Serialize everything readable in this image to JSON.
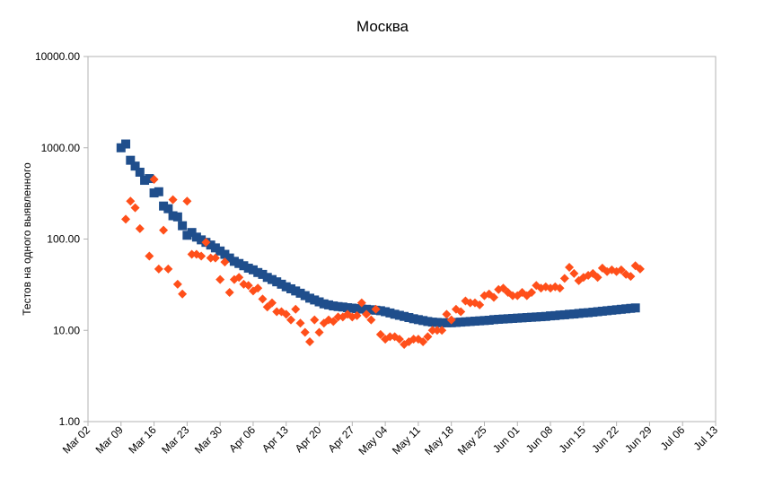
{
  "chart_data": {
    "type": "scatter",
    "title": "Москва",
    "xlabel": "",
    "ylabel": "Тестов на одного выявленного",
    "yscale": "log",
    "ylim": [
      1,
      10000
    ],
    "xlim": [
      "2020-03-02",
      "2020-07-13"
    ],
    "grid": true,
    "legend": "none",
    "y_ticks": [
      "1.00",
      "10.00",
      "100.00",
      "1000.00",
      "10000.00"
    ],
    "x_ticks": [
      {
        "label": "Mar 02",
        "date": "2020-03-02"
      },
      {
        "label": "Mar 09",
        "date": "2020-03-09"
      },
      {
        "label": "Mar 16",
        "date": "2020-03-16"
      },
      {
        "label": "Mar 23",
        "date": "2020-03-23"
      },
      {
        "label": "Mar 30",
        "date": "2020-03-30"
      },
      {
        "label": "Apr 06",
        "date": "2020-04-06"
      },
      {
        "label": "Apr 13",
        "date": "2020-04-13"
      },
      {
        "label": "Apr 20",
        "date": "2020-04-20"
      },
      {
        "label": "Apr 27",
        "date": "2020-04-27"
      },
      {
        "label": "May 04",
        "date": "2020-05-04"
      },
      {
        "label": "May 11",
        "date": "2020-05-11"
      },
      {
        "label": "May 18",
        "date": "2020-05-18"
      },
      {
        "label": "May 25",
        "date": "2020-05-25"
      },
      {
        "label": "Jun 01",
        "date": "2020-06-01"
      },
      {
        "label": "Jun 08",
        "date": "2020-06-08"
      },
      {
        "label": "Jun 15",
        "date": "2020-06-15"
      },
      {
        "label": "Jun 22",
        "date": "2020-06-22"
      },
      {
        "label": "Jun 29",
        "date": "2020-06-29"
      },
      {
        "label": "Jul 06",
        "date": "2020-07-06"
      },
      {
        "label": "Jul 13",
        "date": "2020-07-13"
      }
    ],
    "series": [
      {
        "marker": "square",
        "color": "#1f4e8c",
        "points": [
          {
            "x": "2020-03-09",
            "y": 1000
          },
          {
            "x": "2020-03-10",
            "y": 1100
          },
          {
            "x": "2020-03-11",
            "y": 730
          },
          {
            "x": "2020-03-12",
            "y": 630
          },
          {
            "x": "2020-03-13",
            "y": 540
          },
          {
            "x": "2020-03-14",
            "y": 440
          },
          {
            "x": "2020-03-15",
            "y": 460
          },
          {
            "x": "2020-03-16",
            "y": 320
          },
          {
            "x": "2020-03-17",
            "y": 330
          },
          {
            "x": "2020-03-18",
            "y": 230
          },
          {
            "x": "2020-03-19",
            "y": 215
          },
          {
            "x": "2020-03-20",
            "y": 180
          },
          {
            "x": "2020-03-21",
            "y": 175
          },
          {
            "x": "2020-03-22",
            "y": 140
          },
          {
            "x": "2020-03-23",
            "y": 110
          },
          {
            "x": "2020-03-24",
            "y": 118
          },
          {
            "x": "2020-03-25",
            "y": 105
          },
          {
            "x": "2020-03-26",
            "y": 98
          },
          {
            "x": "2020-03-27",
            "y": 92
          },
          {
            "x": "2020-03-28",
            "y": 86
          },
          {
            "x": "2020-03-29",
            "y": 80
          },
          {
            "x": "2020-03-30",
            "y": 74
          },
          {
            "x": "2020-03-31",
            "y": 68
          },
          {
            "x": "2020-04-01",
            "y": 62
          },
          {
            "x": "2020-04-02",
            "y": 57
          },
          {
            "x": "2020-04-03",
            "y": 54
          },
          {
            "x": "2020-04-04",
            "y": 51
          },
          {
            "x": "2020-04-05",
            "y": 48
          },
          {
            "x": "2020-04-06",
            "y": 46
          },
          {
            "x": "2020-04-07",
            "y": 43
          },
          {
            "x": "2020-04-08",
            "y": 41
          },
          {
            "x": "2020-04-09",
            "y": 38
          },
          {
            "x": "2020-04-10",
            "y": 36
          },
          {
            "x": "2020-04-11",
            "y": 34
          },
          {
            "x": "2020-04-12",
            "y": 32
          },
          {
            "x": "2020-04-13",
            "y": 30
          },
          {
            "x": "2020-04-14",
            "y": 28.5
          },
          {
            "x": "2020-04-15",
            "y": 27
          },
          {
            "x": "2020-04-16",
            "y": 25.5
          },
          {
            "x": "2020-04-17",
            "y": 24
          },
          {
            "x": "2020-04-18",
            "y": 22.5
          },
          {
            "x": "2020-04-19",
            "y": 21.5
          },
          {
            "x": "2020-04-20",
            "y": 20.5
          },
          {
            "x": "2020-04-21",
            "y": 19.5
          },
          {
            "x": "2020-04-22",
            "y": 19
          },
          {
            "x": "2020-04-23",
            "y": 18.5
          },
          {
            "x": "2020-04-24",
            "y": 18.2
          },
          {
            "x": "2020-04-25",
            "y": 18
          },
          {
            "x": "2020-04-26",
            "y": 17.7
          },
          {
            "x": "2020-04-27",
            "y": 17.5
          },
          {
            "x": "2020-04-28",
            "y": 17.3
          },
          {
            "x": "2020-04-29",
            "y": 17.1
          },
          {
            "x": "2020-04-30",
            "y": 17
          },
          {
            "x": "2020-05-01",
            "y": 16.8
          },
          {
            "x": "2020-05-02",
            "y": 16.6
          },
          {
            "x": "2020-05-03",
            "y": 16.4
          },
          {
            "x": "2020-05-04",
            "y": 16
          },
          {
            "x": "2020-05-05",
            "y": 15.5
          },
          {
            "x": "2020-05-06",
            "y": 15
          },
          {
            "x": "2020-05-07",
            "y": 14.6
          },
          {
            "x": "2020-05-08",
            "y": 14.2
          },
          {
            "x": "2020-05-09",
            "y": 13.8
          },
          {
            "x": "2020-05-10",
            "y": 13.4
          },
          {
            "x": "2020-05-11",
            "y": 13.1
          },
          {
            "x": "2020-05-12",
            "y": 12.8
          },
          {
            "x": "2020-05-13",
            "y": 12.5
          },
          {
            "x": "2020-05-14",
            "y": 12.3
          },
          {
            "x": "2020-05-15",
            "y": 12.2
          },
          {
            "x": "2020-05-16",
            "y": 12.1
          },
          {
            "x": "2020-05-17",
            "y": 12.1
          },
          {
            "x": "2020-05-18",
            "y": 12.1
          },
          {
            "x": "2020-05-19",
            "y": 12.2
          },
          {
            "x": "2020-05-20",
            "y": 12.3
          },
          {
            "x": "2020-05-21",
            "y": 12.4
          },
          {
            "x": "2020-05-22",
            "y": 12.5
          },
          {
            "x": "2020-05-23",
            "y": 12.6
          },
          {
            "x": "2020-05-24",
            "y": 12.7
          },
          {
            "x": "2020-05-25",
            "y": 12.8
          },
          {
            "x": "2020-05-26",
            "y": 12.9
          },
          {
            "x": "2020-05-27",
            "y": 13.1
          },
          {
            "x": "2020-05-28",
            "y": 13.2
          },
          {
            "x": "2020-05-29",
            "y": 13.3
          },
          {
            "x": "2020-05-30",
            "y": 13.4
          },
          {
            "x": "2020-05-31",
            "y": 13.5
          },
          {
            "x": "2020-06-01",
            "y": 13.6
          },
          {
            "x": "2020-06-02",
            "y": 13.7
          },
          {
            "x": "2020-06-03",
            "y": 13.8
          },
          {
            "x": "2020-06-04",
            "y": 13.9
          },
          {
            "x": "2020-06-05",
            "y": 14
          },
          {
            "x": "2020-06-06",
            "y": 14.1
          },
          {
            "x": "2020-06-07",
            "y": 14.2
          },
          {
            "x": "2020-06-08",
            "y": 14.4
          },
          {
            "x": "2020-06-09",
            "y": 14.5
          },
          {
            "x": "2020-06-10",
            "y": 14.7
          },
          {
            "x": "2020-06-11",
            "y": 14.8
          },
          {
            "x": "2020-06-12",
            "y": 15
          },
          {
            "x": "2020-06-13",
            "y": 15.1
          },
          {
            "x": "2020-06-14",
            "y": 15.3
          },
          {
            "x": "2020-06-15",
            "y": 15.5
          },
          {
            "x": "2020-06-16",
            "y": 15.6
          },
          {
            "x": "2020-06-17",
            "y": 15.8
          },
          {
            "x": "2020-06-18",
            "y": 16
          },
          {
            "x": "2020-06-19",
            "y": 16.2
          },
          {
            "x": "2020-06-20",
            "y": 16.4
          },
          {
            "x": "2020-06-21",
            "y": 16.6
          },
          {
            "x": "2020-06-22",
            "y": 16.8
          },
          {
            "x": "2020-06-23",
            "y": 17
          },
          {
            "x": "2020-06-24",
            "y": 17.2
          },
          {
            "x": "2020-06-25",
            "y": 17.4
          },
          {
            "x": "2020-06-26",
            "y": 17.6
          }
        ]
      },
      {
        "marker": "diamond",
        "color": "#ff4f1a",
        "points": [
          {
            "x": "2020-03-10",
            "y": 165
          },
          {
            "x": "2020-03-11",
            "y": 260
          },
          {
            "x": "2020-03-12",
            "y": 220
          },
          {
            "x": "2020-03-13",
            "y": 130
          },
          {
            "x": "2020-03-15",
            "y": 65
          },
          {
            "x": "2020-03-16",
            "y": 450
          },
          {
            "x": "2020-03-17",
            "y": 47
          },
          {
            "x": "2020-03-18",
            "y": 125
          },
          {
            "x": "2020-03-19",
            "y": 47
          },
          {
            "x": "2020-03-20",
            "y": 270
          },
          {
            "x": "2020-03-21",
            "y": 32
          },
          {
            "x": "2020-03-22",
            "y": 25
          },
          {
            "x": "2020-03-23",
            "y": 260
          },
          {
            "x": "2020-03-24",
            "y": 68
          },
          {
            "x": "2020-03-25",
            "y": 68
          },
          {
            "x": "2020-03-26",
            "y": 65
          },
          {
            "x": "2020-03-27",
            "y": 92
          },
          {
            "x": "2020-03-28",
            "y": 62
          },
          {
            "x": "2020-03-29",
            "y": 62
          },
          {
            "x": "2020-03-30",
            "y": 36
          },
          {
            "x": "2020-03-31",
            "y": 56
          },
          {
            "x": "2020-04-01",
            "y": 26
          },
          {
            "x": "2020-04-02",
            "y": 36
          },
          {
            "x": "2020-04-03",
            "y": 38
          },
          {
            "x": "2020-04-04",
            "y": 32
          },
          {
            "x": "2020-04-05",
            "y": 31
          },
          {
            "x": "2020-04-06",
            "y": 27
          },
          {
            "x": "2020-04-07",
            "y": 29
          },
          {
            "x": "2020-04-08",
            "y": 22
          },
          {
            "x": "2020-04-09",
            "y": 18
          },
          {
            "x": "2020-04-10",
            "y": 20
          },
          {
            "x": "2020-04-11",
            "y": 16
          },
          {
            "x": "2020-04-12",
            "y": 16
          },
          {
            "x": "2020-04-13",
            "y": 15
          },
          {
            "x": "2020-04-14",
            "y": 13
          },
          {
            "x": "2020-04-15",
            "y": 17
          },
          {
            "x": "2020-04-16",
            "y": 12
          },
          {
            "x": "2020-04-17",
            "y": 9.5
          },
          {
            "x": "2020-04-18",
            "y": 7.5
          },
          {
            "x": "2020-04-19",
            "y": 13
          },
          {
            "x": "2020-04-20",
            "y": 9.5
          },
          {
            "x": "2020-04-21",
            "y": 12
          },
          {
            "x": "2020-04-22",
            "y": 13
          },
          {
            "x": "2020-04-23",
            "y": 12.5
          },
          {
            "x": "2020-04-24",
            "y": 14
          },
          {
            "x": "2020-04-25",
            "y": 14
          },
          {
            "x": "2020-04-26",
            "y": 15
          },
          {
            "x": "2020-04-27",
            "y": 14
          },
          {
            "x": "2020-04-28",
            "y": 14.5
          },
          {
            "x": "2020-04-29",
            "y": 20
          },
          {
            "x": "2020-04-30",
            "y": 15
          },
          {
            "x": "2020-05-01",
            "y": 13
          },
          {
            "x": "2020-05-02",
            "y": 17
          },
          {
            "x": "2020-05-03",
            "y": 9
          },
          {
            "x": "2020-05-04",
            "y": 8
          },
          {
            "x": "2020-05-05",
            "y": 8.5
          },
          {
            "x": "2020-05-06",
            "y": 8.5
          },
          {
            "x": "2020-05-07",
            "y": 8
          },
          {
            "x": "2020-05-08",
            "y": 7
          },
          {
            "x": "2020-05-09",
            "y": 7.5
          },
          {
            "x": "2020-05-10",
            "y": 8
          },
          {
            "x": "2020-05-11",
            "y": 8
          },
          {
            "x": "2020-05-12",
            "y": 7.5
          },
          {
            "x": "2020-05-13",
            "y": 8.5
          },
          {
            "x": "2020-05-14",
            "y": 10
          },
          {
            "x": "2020-05-15",
            "y": 10
          },
          {
            "x": "2020-05-16",
            "y": 10
          },
          {
            "x": "2020-05-17",
            "y": 15
          },
          {
            "x": "2020-05-18",
            "y": 13
          },
          {
            "x": "2020-05-19",
            "y": 17
          },
          {
            "x": "2020-05-20",
            "y": 16
          },
          {
            "x": "2020-05-21",
            "y": 21
          },
          {
            "x": "2020-05-22",
            "y": 20
          },
          {
            "x": "2020-05-23",
            "y": 20
          },
          {
            "x": "2020-05-24",
            "y": 19
          },
          {
            "x": "2020-05-25",
            "y": 24
          },
          {
            "x": "2020-05-26",
            "y": 25
          },
          {
            "x": "2020-05-27",
            "y": 23
          },
          {
            "x": "2020-05-28",
            "y": 28
          },
          {
            "x": "2020-05-29",
            "y": 29
          },
          {
            "x": "2020-05-30",
            "y": 26
          },
          {
            "x": "2020-05-31",
            "y": 24
          },
          {
            "x": "2020-06-01",
            "y": 24
          },
          {
            "x": "2020-06-02",
            "y": 26
          },
          {
            "x": "2020-06-03",
            "y": 24
          },
          {
            "x": "2020-06-04",
            "y": 26
          },
          {
            "x": "2020-06-05",
            "y": 31
          },
          {
            "x": "2020-06-06",
            "y": 29
          },
          {
            "x": "2020-06-07",
            "y": 30
          },
          {
            "x": "2020-06-08",
            "y": 29
          },
          {
            "x": "2020-06-09",
            "y": 30
          },
          {
            "x": "2020-06-10",
            "y": 29
          },
          {
            "x": "2020-06-11",
            "y": 37
          },
          {
            "x": "2020-06-12",
            "y": 49
          },
          {
            "x": "2020-06-13",
            "y": 42
          },
          {
            "x": "2020-06-14",
            "y": 35
          },
          {
            "x": "2020-06-15",
            "y": 38
          },
          {
            "x": "2020-06-16",
            "y": 40
          },
          {
            "x": "2020-06-17",
            "y": 42
          },
          {
            "x": "2020-06-18",
            "y": 38
          },
          {
            "x": "2020-06-19",
            "y": 48
          },
          {
            "x": "2020-06-20",
            "y": 44
          },
          {
            "x": "2020-06-21",
            "y": 46
          },
          {
            "x": "2020-06-22",
            "y": 44
          },
          {
            "x": "2020-06-23",
            "y": 46
          },
          {
            "x": "2020-06-24",
            "y": 41
          },
          {
            "x": "2020-06-25",
            "y": 39
          },
          {
            "x": "2020-06-26",
            "y": 51
          },
          {
            "x": "2020-06-27",
            "y": 47
          }
        ]
      }
    ]
  }
}
